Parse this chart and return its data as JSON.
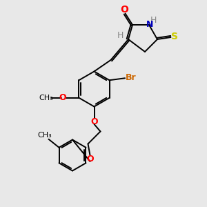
{
  "bg_color": "#e8e8e8",
  "bond_color": "#000000",
  "colors": {
    "O": "#ff0000",
    "N": "#0000bb",
    "S": "#cccc00",
    "Br": "#cc6600",
    "H": "#888888",
    "C": "#000000"
  },
  "figsize": [
    3.0,
    3.0
  ],
  "dpi": 100
}
